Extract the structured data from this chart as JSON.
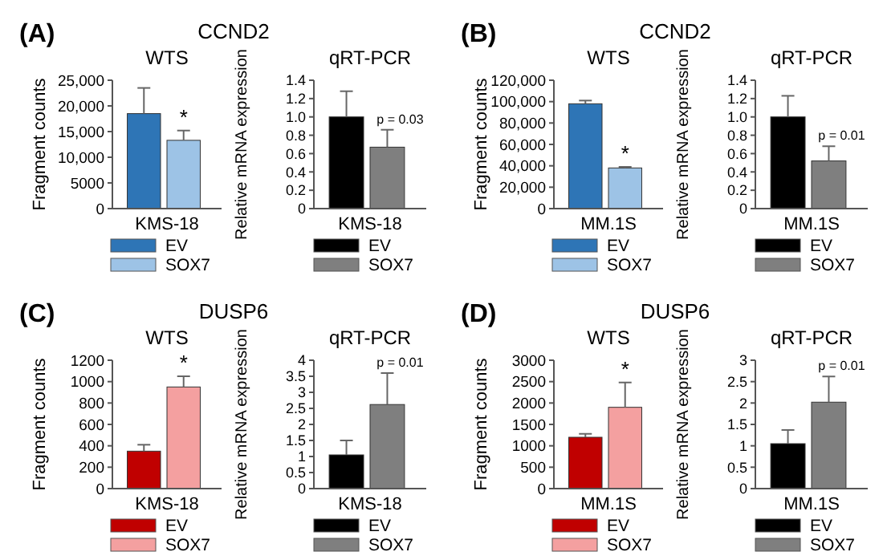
{
  "chart_data": [
    {
      "type": "bar",
      "title": "WTS",
      "ylabel": "Fragment counts",
      "annotations": [
        "(A)",
        "CCND2",
        "*"
      ],
      "categories": [
        "KMS-18"
      ],
      "series": [
        {
          "name": "EV",
          "color": "#2e75b6",
          "values": [
            18500
          ],
          "errors": [
            5000
          ]
        },
        {
          "name": "SOX7",
          "color": "#9dc3e6",
          "values": [
            13300
          ],
          "errors": [
            1900
          ]
        }
      ],
      "ylim": [
        0,
        25000
      ],
      "yticks": [
        0,
        5000,
        {
          "value": 10000,
          "label": "10,000"
        },
        {
          "value": 15000,
          "label": "15,000"
        },
        {
          "value": 20000,
          "label": "20,000"
        },
        {
          "value": 25000,
          "label": "25,000"
        }
      ],
      "legend": "bottom"
    },
    {
      "type": "bar",
      "title": "qRT-PCR",
      "ylabel": "Relative mRNA expression",
      "annotations": [
        "p = 0.03"
      ],
      "categories": [
        "KMS-18"
      ],
      "series": [
        {
          "name": "EV",
          "color": "#000000",
          "values": [
            1.0
          ],
          "errors": [
            0.28
          ]
        },
        {
          "name": "SOX7",
          "color": "#7f7f7f",
          "values": [
            0.67
          ],
          "errors": [
            0.19
          ]
        }
      ],
      "ylim": [
        0,
        1.4
      ],
      "yticks": [
        0,
        0.2,
        0.4,
        0.6,
        0.8,
        {
          "value": 1,
          "label": "1.0"
        },
        1.2,
        1.4
      ],
      "legend": "bottom"
    },
    {
      "type": "bar",
      "title": "WTS",
      "ylabel": "Fragment counts",
      "annotations": [
        "(B)",
        "CCND2",
        "*"
      ],
      "categories": [
        "MM.1S"
      ],
      "series": [
        {
          "name": "EV",
          "color": "#2e75b6",
          "values": [
            98000
          ],
          "errors": [
            3000
          ]
        },
        {
          "name": "SOX7",
          "color": "#9dc3e6",
          "values": [
            38000
          ],
          "errors": [
            1000
          ]
        }
      ],
      "ylim": [
        0,
        120000
      ],
      "yticks": [
        0,
        {
          "value": 20000,
          "label": "20,000"
        },
        {
          "value": 40000,
          "label": "40,000"
        },
        {
          "value": 60000,
          "label": "60,000"
        },
        {
          "value": 80000,
          "label": "80,000"
        },
        {
          "value": 100000,
          "label": "100,000"
        },
        {
          "value": 120000,
          "label": "120,000"
        }
      ],
      "legend": "bottom"
    },
    {
      "type": "bar",
      "title": "qRT-PCR",
      "ylabel": "Relative mRNA expression",
      "annotations": [
        "p = 0.01"
      ],
      "categories": [
        "MM.1S"
      ],
      "series": [
        {
          "name": "EV",
          "color": "#000000",
          "values": [
            1.0
          ],
          "errors": [
            0.23
          ]
        },
        {
          "name": "SOX7",
          "color": "#7f7f7f",
          "values": [
            0.52
          ],
          "errors": [
            0.16
          ]
        }
      ],
      "ylim": [
        0,
        1.4
      ],
      "yticks": [
        0,
        0.2,
        0.4,
        0.6,
        0.8,
        {
          "value": 1,
          "label": "1.0"
        },
        1.2,
        1.4
      ],
      "legend": "bottom"
    },
    {
      "type": "bar",
      "title": "WTS",
      "ylabel": "Fragment counts",
      "annotations": [
        "(C)",
        "DUSP6",
        "*"
      ],
      "categories": [
        "KMS-18"
      ],
      "series": [
        {
          "name": "EV",
          "color": "#c00000",
          "values": [
            350
          ],
          "errors": [
            60
          ]
        },
        {
          "name": "SOX7",
          "color": "#f4a0a0",
          "values": [
            950
          ],
          "errors": [
            100
          ]
        }
      ],
      "ylim": [
        0,
        1200
      ],
      "yticks": [
        0,
        200,
        400,
        600,
        800,
        1000,
        1200
      ],
      "legend": "bottom"
    },
    {
      "type": "bar",
      "title": "qRT-PCR",
      "ylabel": "Relative mRNA expression",
      "annotations": [
        "p = 0.01"
      ],
      "categories": [
        "KMS-18"
      ],
      "series": [
        {
          "name": "EV",
          "color": "#000000",
          "values": [
            1.05
          ],
          "errors": [
            0.45
          ]
        },
        {
          "name": "SOX7",
          "color": "#7f7f7f",
          "values": [
            2.62
          ],
          "errors": [
            0.98
          ]
        }
      ],
      "ylim": [
        0,
        4
      ],
      "yticks": [
        0,
        0.5,
        1,
        1.5,
        2,
        2.5,
        3,
        3.5,
        4
      ],
      "legend": "bottom"
    },
    {
      "type": "bar",
      "title": "WTS",
      "ylabel": "Fragment counts",
      "annotations": [
        "(D)",
        "DUSP6",
        "*"
      ],
      "categories": [
        "MM.1S"
      ],
      "series": [
        {
          "name": "EV",
          "color": "#c00000",
          "values": [
            1200
          ],
          "errors": [
            80
          ]
        },
        {
          "name": "SOX7",
          "color": "#f4a0a0",
          "values": [
            1900
          ],
          "errors": [
            580
          ]
        }
      ],
      "ylim": [
        0,
        3000
      ],
      "yticks": [
        0,
        500,
        1000,
        1500,
        2000,
        2500,
        3000
      ],
      "legend": "bottom"
    },
    {
      "type": "bar",
      "title": "qRT-PCR",
      "ylabel": "Relative mRNA expression",
      "annotations": [
        "p = 0.01"
      ],
      "categories": [
        "MM.1S"
      ],
      "series": [
        {
          "name": "EV",
          "color": "#000000",
          "values": [
            1.05
          ],
          "errors": [
            0.32
          ]
        },
        {
          "name": "SOX7",
          "color": "#7f7f7f",
          "values": [
            2.02
          ],
          "errors": [
            0.6
          ]
        }
      ],
      "ylim": [
        0,
        3
      ],
      "yticks": [
        0,
        0.5,
        1,
        1.5,
        2,
        2.5,
        3
      ],
      "legend": "bottom"
    }
  ]
}
